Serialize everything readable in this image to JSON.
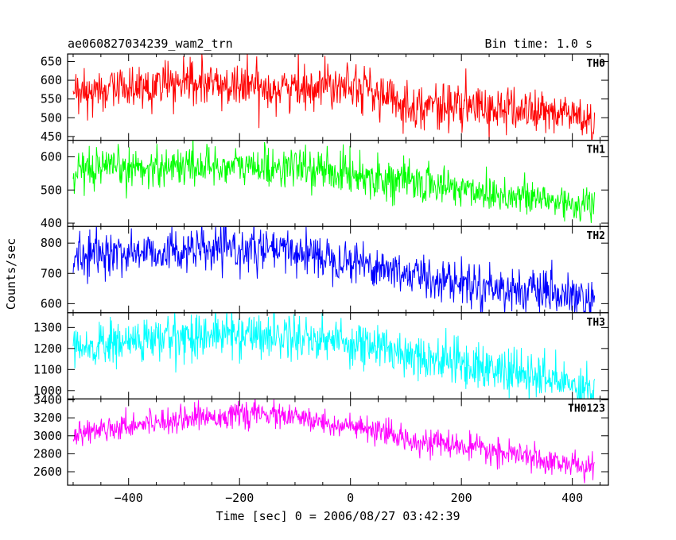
{
  "header": {
    "obs_id": "ae060827034239_wam2_trn",
    "bin_time": "Bin time: 1.0 s"
  },
  "chart_data": {
    "type": "line",
    "xlabel": "Time [sec] 0 = 2006/08/27 03:42:39",
    "ylabel": "Counts/sec",
    "xlim": [
      -510,
      465
    ],
    "x_ticks": [
      -400,
      -200,
      0,
      200,
      400
    ],
    "x_tick_labels": [
      "−400",
      "−200",
      "0",
      "200",
      "400"
    ],
    "x_range_data": [
      -500,
      440
    ],
    "grid": false,
    "panels": [
      {
        "name": "TH0",
        "color": "#ff0000",
        "ylim": [
          440,
          670
        ],
        "y_ticks": [
          450,
          500,
          550,
          600,
          650
        ],
        "noise": 30,
        "trend": [
          [
            -500,
            555
          ],
          [
            -450,
            575
          ],
          [
            -300,
            590
          ],
          [
            -200,
            585
          ],
          [
            -100,
            578
          ],
          [
            0,
            600
          ],
          [
            50,
            560
          ],
          [
            100,
            535
          ],
          [
            200,
            530
          ],
          [
            300,
            520
          ],
          [
            400,
            510
          ],
          [
            440,
            480
          ]
        ]
      },
      {
        "name": "TH1",
        "color": "#00ff00",
        "ylim": [
          390,
          650
        ],
        "y_ticks": [
          400,
          500,
          600
        ],
        "noise": 30,
        "trend": [
          [
            -500,
            540
          ],
          [
            -450,
            560
          ],
          [
            -300,
            575
          ],
          [
            -200,
            570
          ],
          [
            -100,
            568
          ],
          [
            0,
            550
          ],
          [
            100,
            525
          ],
          [
            200,
            505
          ],
          [
            300,
            480
          ],
          [
            400,
            460
          ],
          [
            440,
            450
          ]
        ]
      },
      {
        "name": "TH2",
        "color": "#0000ff",
        "ylim": [
          570,
          855
        ],
        "y_ticks": [
          600,
          700,
          800
        ],
        "noise": 35,
        "trend": [
          [
            -500,
            750
          ],
          [
            -450,
            765
          ],
          [
            -300,
            775
          ],
          [
            -200,
            778
          ],
          [
            -100,
            772
          ],
          [
            0,
            745
          ],
          [
            100,
            700
          ],
          [
            200,
            670
          ],
          [
            300,
            645
          ],
          [
            400,
            620
          ],
          [
            440,
            605
          ]
        ]
      },
      {
        "name": "TH3",
        "color": "#00ffff",
        "ylim": [
          960,
          1370
        ],
        "y_ticks": [
          1000,
          1100,
          1200,
          1300
        ],
        "noise": 55,
        "trend": [
          [
            -500,
            1180
          ],
          [
            -450,
            1215
          ],
          [
            -300,
            1260
          ],
          [
            -200,
            1270
          ],
          [
            -100,
            1260
          ],
          [
            0,
            1230
          ],
          [
            100,
            1180
          ],
          [
            200,
            1130
          ],
          [
            300,
            1080
          ],
          [
            400,
            1030
          ],
          [
            440,
            1010
          ]
        ]
      },
      {
        "name": "TH0123",
        "color": "#ff00ff",
        "ylim": [
          2450,
          3410
        ],
        "y_ticks": [
          2600,
          2800,
          3000,
          3200,
          3400
        ],
        "noise": 70,
        "trend": [
          [
            -500,
            3000
          ],
          [
            -450,
            3080
          ],
          [
            -300,
            3200
          ],
          [
            -200,
            3230
          ],
          [
            -150,
            3240
          ],
          [
            -100,
            3200
          ],
          [
            0,
            3100
          ],
          [
            100,
            2970
          ],
          [
            200,
            2880
          ],
          [
            300,
            2780
          ],
          [
            400,
            2680
          ],
          [
            440,
            2630
          ]
        ]
      }
    ]
  }
}
